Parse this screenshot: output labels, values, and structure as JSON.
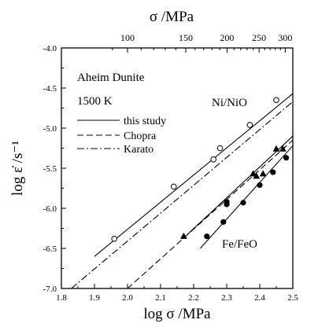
{
  "chart_data": {
    "type": "scatter",
    "title": "",
    "xlabel": "log σ /MPa",
    "ylabel": "log ε̇ /s⁻¹",
    "top_axis_label": "σ /MPa",
    "xlim": [
      1.8,
      2.5
    ],
    "ylim": [
      -7.0,
      -4.0
    ],
    "x_ticks": [
      "1.8",
      "1.9",
      "2.0",
      "2.1",
      "2.2",
      "2.3",
      "2.4",
      "2.5"
    ],
    "y_ticks": [
      "-7.0",
      "-6.5",
      "-6.0",
      "-5.5",
      "-5.0",
      "-4.5",
      "-4.0"
    ],
    "top_ticks": [
      {
        "value": 100,
        "label": "100"
      },
      {
        "value": 150,
        "label": "150"
      },
      {
        "value": 200,
        "label": "200"
      },
      {
        "value": 250,
        "label": "250"
      },
      {
        "value": 300,
        "label": "300"
      }
    ],
    "annotations": {
      "sample": "Aheim Dunite",
      "temperature": "1500 K",
      "buffer_upper": "Ni/NiO",
      "buffer_lower": "Fe/FeO"
    },
    "legend": [
      {
        "label": "this study",
        "style": "solid"
      },
      {
        "label": "Chopra",
        "style": "dashed"
      },
      {
        "label": "Karato",
        "style": "dashdot"
      }
    ],
    "legend_position": "top-left",
    "grid": false,
    "series": [
      {
        "buffer": "Ni/NiO",
        "marker": "open-circle",
        "points": [
          [
            1.96,
            -6.38
          ],
          [
            2.14,
            -5.73
          ],
          [
            2.26,
            -5.39
          ],
          [
            2.28,
            -5.25
          ],
          [
            2.37,
            -4.96
          ],
          [
            2.45,
            -4.65
          ]
        ]
      },
      {
        "buffer": "Fe/FeO",
        "marker": "filled-circle",
        "points": [
          [
            2.24,
            -6.35
          ],
          [
            2.29,
            -6.17
          ],
          [
            2.3,
            -5.95
          ],
          [
            2.3,
            -5.92
          ],
          [
            2.35,
            -5.93
          ],
          [
            2.4,
            -5.71
          ],
          [
            2.44,
            -5.55
          ],
          [
            2.48,
            -5.37
          ]
        ]
      },
      {
        "buffer": "Fe/FeO",
        "marker": "filled-triangle",
        "points": [
          [
            2.17,
            -6.35
          ],
          [
            2.38,
            -5.57
          ],
          [
            2.39,
            -5.6
          ],
          [
            2.41,
            -5.57
          ],
          [
            2.45,
            -5.26
          ],
          [
            2.47,
            -5.26
          ]
        ]
      }
    ],
    "lines": [
      {
        "buffer": "Ni/NiO",
        "style": "solid",
        "from": [
          1.9,
          -6.6
        ],
        "to": [
          2.5,
          -4.57
        ]
      },
      {
        "buffer": "Fe/FeO",
        "style": "solid",
        "from": [
          2.22,
          -6.5
        ],
        "to": [
          2.5,
          -5.22
        ]
      },
      {
        "buffer": "Fe/FeO",
        "style": "solid",
        "from": [
          2.18,
          -6.33
        ],
        "to": [
          2.5,
          -5.1
        ]
      },
      {
        "style": "dashed",
        "from": [
          2.0,
          -7.0
        ],
        "to": [
          2.5,
          -5.15
        ]
      },
      {
        "style": "dashdot",
        "from": [
          1.83,
          -7.0
        ],
        "to": [
          2.5,
          -4.67
        ]
      }
    ]
  }
}
